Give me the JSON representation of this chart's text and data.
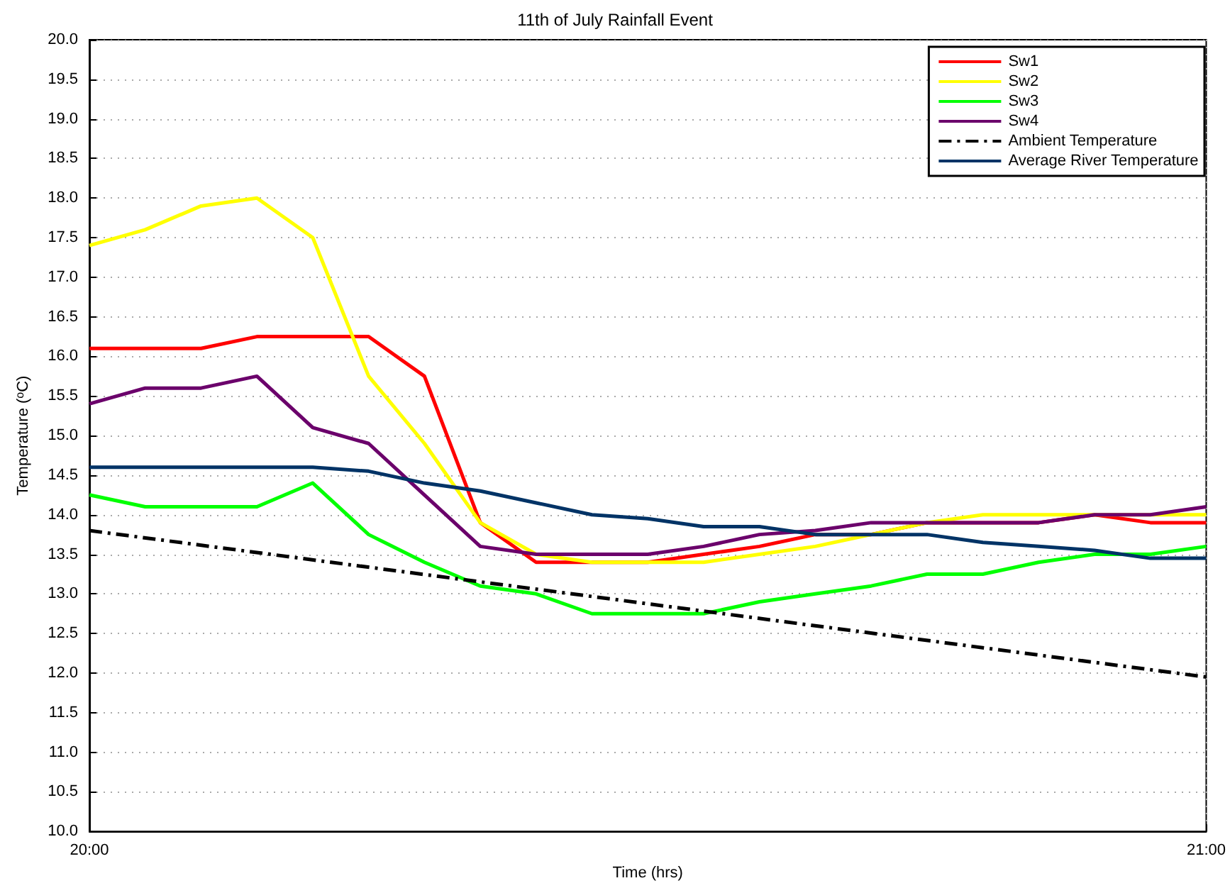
{
  "chart_data": {
    "type": "line",
    "title": "11th of July Rainfall Event",
    "xlabel": "Time (hrs)",
    "ylabel": "Temperature ($^{o}$C)",
    "x": [
      20,
      20.05,
      20.1,
      20.15,
      20.2,
      20.25,
      20.3,
      20.35,
      20.4,
      20.45,
      20.5,
      20.55,
      20.6,
      20.65,
      20.7,
      20.75,
      20.8,
      20.85,
      20.9,
      20.95,
      21
    ],
    "series": [
      {
        "name": "Sw1",
        "color": "#ff0000",
        "values": [
          16.1,
          16.1,
          16.1,
          16.25,
          16.25,
          16.25,
          15.75,
          13.9,
          13.4,
          13.4,
          13.4,
          13.5,
          13.6,
          13.75,
          13.75,
          13.9,
          13.9,
          13.9,
          14.0,
          13.9,
          13.9
        ]
      },
      {
        "name": "Sw2",
        "color": "#ffff00",
        "values": [
          17.4,
          17.6,
          17.9,
          18.0,
          17.5,
          15.75,
          14.9,
          13.9,
          13.5,
          13.4,
          13.4,
          13.4,
          13.5,
          13.6,
          13.75,
          13.9,
          14.0,
          14.0,
          14.0,
          14.0,
          14.0
        ]
      },
      {
        "name": "Sw3",
        "color": "#00ff00",
        "values": [
          14.25,
          14.1,
          14.1,
          14.1,
          14.4,
          13.75,
          13.4,
          13.1,
          13.0,
          12.75,
          12.75,
          12.75,
          12.9,
          13.0,
          13.1,
          13.25,
          13.25,
          13.4,
          13.5,
          13.5,
          13.6
        ]
      },
      {
        "name": "Sw4",
        "color": "#6b006b",
        "values": [
          15.4,
          15.6,
          15.6,
          15.75,
          15.1,
          14.9,
          14.25,
          13.6,
          13.5,
          13.5,
          13.5,
          13.6,
          13.75,
          13.8,
          13.9,
          13.9,
          13.9,
          13.9,
          14.0,
          14.0,
          14.1
        ]
      },
      {
        "name": "Ambient Temperature",
        "color": "#000000",
        "line_style": "dashdot",
        "x": [
          20,
          21
        ],
        "values": [
          13.8,
          11.95
        ]
      },
      {
        "name": "Average River Temperature",
        "color": "#003366",
        "values": [
          14.6,
          14.6,
          14.6,
          14.6,
          14.6,
          14.55,
          14.4,
          14.3,
          14.15,
          14.0,
          13.95,
          13.85,
          13.85,
          13.75,
          13.75,
          13.75,
          13.65,
          13.6,
          13.55,
          13.45,
          13.45
        ]
      }
    ],
    "xlim": [
      20,
      21
    ],
    "xticks": [
      {
        "value": 20,
        "label": "20:00"
      },
      {
        "value": 21,
        "label": "21:00"
      }
    ],
    "ylim": [
      10,
      20
    ],
    "yticks": [
      {
        "value": 10,
        "label": "10.0"
      },
      {
        "value": 10.5,
        "label": "10.5"
      },
      {
        "value": 11,
        "label": "11.0"
      },
      {
        "value": 11.5,
        "label": "11.5"
      },
      {
        "value": 12,
        "label": "12.0"
      },
      {
        "value": 12.5,
        "label": "12.5"
      },
      {
        "value": 13,
        "label": "13.0"
      },
      {
        "value": 13.5,
        "label": "13.5"
      },
      {
        "value": 14,
        "label": "14.0"
      },
      {
        "value": 14.5,
        "label": "14.5"
      },
      {
        "value": 15,
        "label": "15.0"
      },
      {
        "value": 15.5,
        "label": "15.5"
      },
      {
        "value": 16,
        "label": "16.0"
      },
      {
        "value": 16.5,
        "label": "16.5"
      },
      {
        "value": 17,
        "label": "17.0"
      },
      {
        "value": 17.5,
        "label": "17.5"
      },
      {
        "value": 18,
        "label": "18.0"
      },
      {
        "value": 18.5,
        "label": "18.5"
      },
      {
        "value": 19,
        "label": "19.0"
      },
      {
        "value": 19.5,
        "label": "19.5"
      },
      {
        "value": 20,
        "label": "20.0"
      }
    ],
    "grid": true,
    "legend": "top right",
    "marker": "none"
  }
}
